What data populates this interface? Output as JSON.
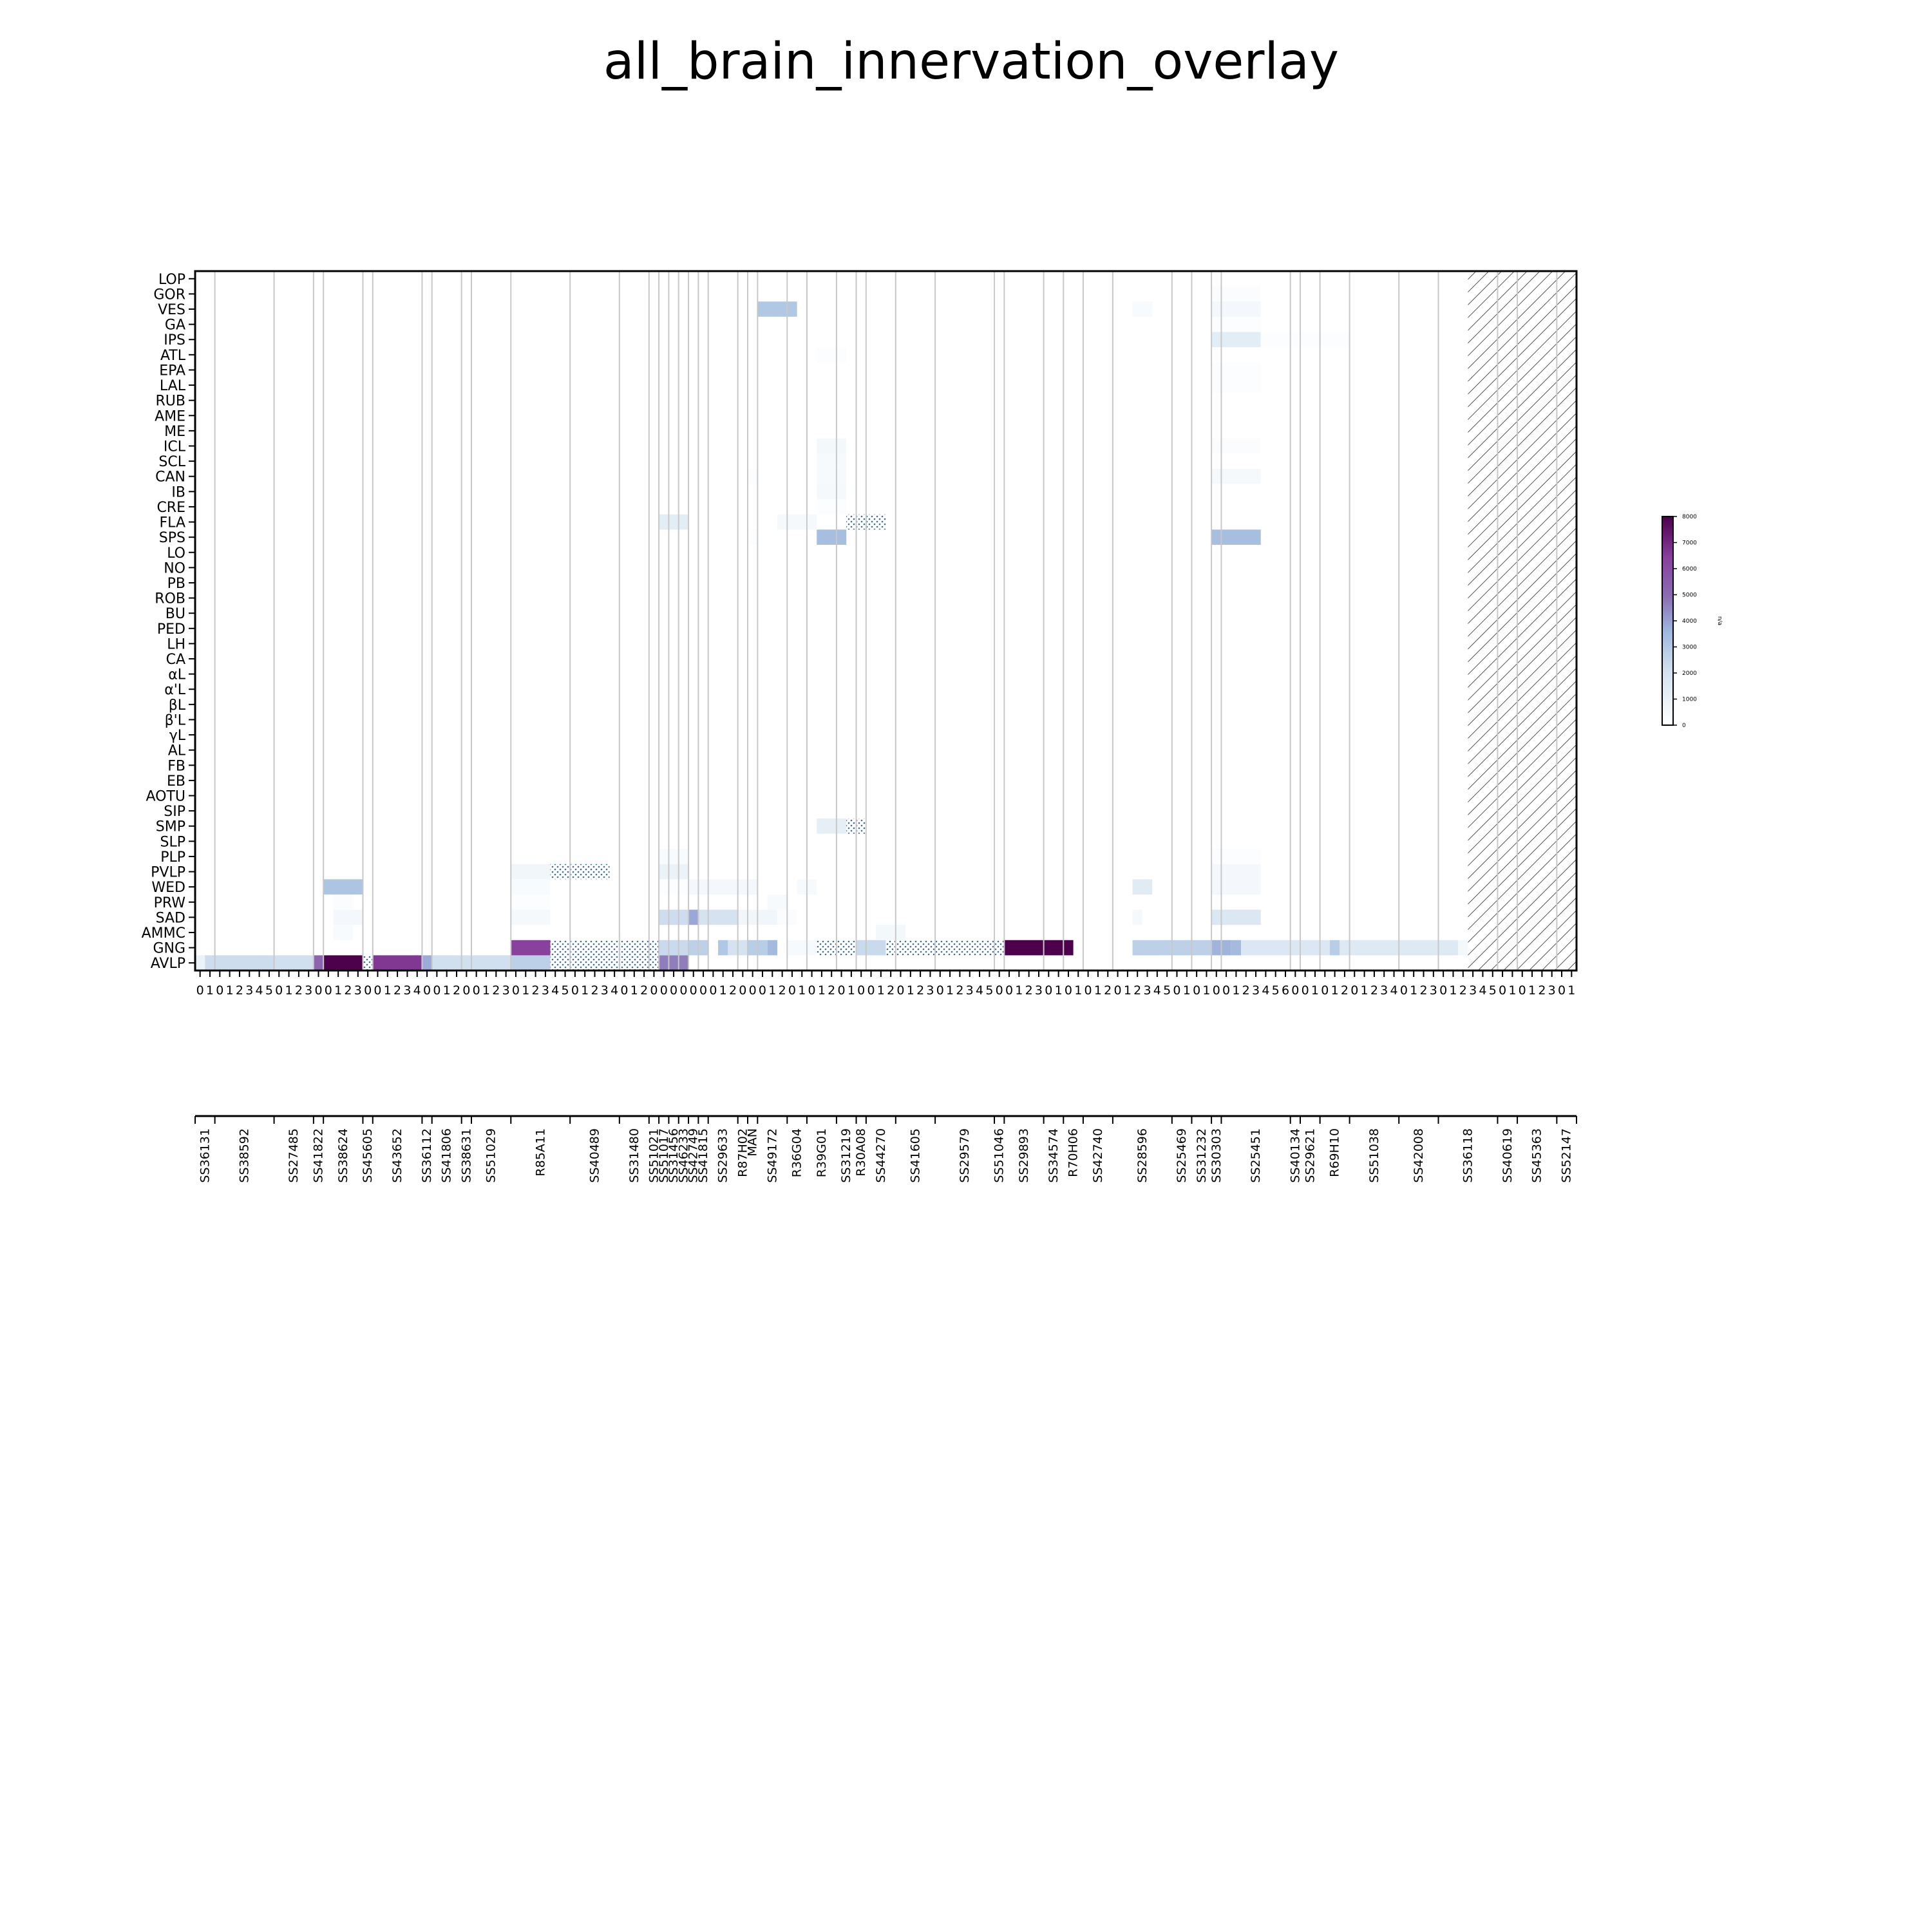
{
  "chart_data": {
    "type": "heatmap",
    "title": "all_brain_innervation_overlay",
    "regions": [
      "LOP",
      "GOR",
      "VES",
      "GA",
      "IPS",
      "ATL",
      "EPA",
      "LAL",
      "RUB",
      "AME",
      "ME",
      "ICL",
      "SCL",
      "CAN",
      "IB",
      "CRE",
      "FLA",
      "SPS",
      "LO",
      "NO",
      "PB",
      "ROB",
      "BU",
      "PED",
      "LH",
      "CA",
      "αL",
      "α'L",
      "βL",
      "β'L",
      "γL",
      "AL",
      "FB",
      "EB",
      "AOTU",
      "SIP",
      "SMP",
      "SLP",
      "PLP",
      "PVLP",
      "WED",
      "PRW",
      "SAD",
      "AMMC",
      "GNG",
      "AVLP"
    ],
    "lines": [
      {
        "name": "SS36131",
        "n": 2
      },
      {
        "name": "SS38592",
        "n": 6
      },
      {
        "name": "SS27485",
        "n": 4
      },
      {
        "name": "SS41822",
        "n": 1
      },
      {
        "name": "SS38624",
        "n": 4
      },
      {
        "name": "SS45605",
        "n": 1
      },
      {
        "name": "SS43652",
        "n": 5
      },
      {
        "name": "SS36112",
        "n": 1
      },
      {
        "name": "SS41806",
        "n": 3
      },
      {
        "name": "SS38631",
        "n": 1
      },
      {
        "name": "SS51029",
        "n": 4
      },
      {
        "name": "R85A11",
        "n": 6
      },
      {
        "name": "SS40489",
        "n": 5
      },
      {
        "name": "SS31480",
        "n": 3
      },
      {
        "name": "SS51021",
        "n": 1
      },
      {
        "name": "SS51017",
        "n": 1
      },
      {
        "name": "SS31456",
        "n": 1
      },
      {
        "name": "SS46233",
        "n": 1
      },
      {
        "name": "SS42749",
        "n": 1
      },
      {
        "name": "SS41815",
        "n": 1
      },
      {
        "name": "SS29633",
        "n": 3
      },
      {
        "name": "R87H02",
        "n": 1
      },
      {
        "name": "MAN",
        "n": 1
      },
      {
        "name": "SS49172",
        "n": 3
      },
      {
        "name": "R36G04",
        "n": 2
      },
      {
        "name": "R39G01",
        "n": 3
      },
      {
        "name": "SS31219",
        "n": 2
      },
      {
        "name": "R30A08",
        "n": 1
      },
      {
        "name": "SS44270",
        "n": 3
      },
      {
        "name": "SS41605",
        "n": 4
      },
      {
        "name": "SS29579",
        "n": 6
      },
      {
        "name": "SS51046",
        "n": 1
      },
      {
        "name": "SS29893",
        "n": 4
      },
      {
        "name": "SS34574",
        "n": 2
      },
      {
        "name": "R70H06",
        "n": 2
      },
      {
        "name": "SS42740",
        "n": 3
      },
      {
        "name": "SS28596",
        "n": 6
      },
      {
        "name": "SS25469",
        "n": 2
      },
      {
        "name": "SS31232",
        "n": 2
      },
      {
        "name": "SS30303",
        "n": 1
      },
      {
        "name": "SS25451",
        "n": 7
      },
      {
        "name": "SS40134",
        "n": 1
      },
      {
        "name": "SS29621",
        "n": 2
      },
      {
        "name": "R69H10",
        "n": 3
      },
      {
        "name": "SS51038",
        "n": 5
      },
      {
        "name": "SS42008",
        "n": 4
      },
      {
        "name": "SS36118",
        "n": 6
      },
      {
        "name": "SS40619",
        "n": 2
      },
      {
        "name": "SS45363",
        "n": 4
      },
      {
        "name": "SS52147",
        "n": 2
      }
    ],
    "no_data_from_column": 129,
    "colorbar": {
      "min": 0,
      "max": 8000,
      "ticks": [
        "0",
        "1000",
        "2000",
        "3000",
        "4000",
        "5000",
        "6000",
        "7000",
        "8000"
      ],
      "label": "n/a"
    },
    "cells": [
      {
        "region": "AVLP",
        "from": 0,
        "to": 1,
        "value": 1200
      },
      {
        "region": "AVLP",
        "from": 1,
        "to": 7,
        "value": 2200
      },
      {
        "region": "AVLP",
        "from": 8,
        "to": 11,
        "value": 2100
      },
      {
        "region": "AVLP",
        "from": 12,
        "to": 12,
        "value": 5000
      },
      {
        "region": "AVLP",
        "from": 13,
        "to": 16,
        "value": 8500
      },
      {
        "region": "AVLP",
        "from": 17,
        "to": 17,
        "value": 0,
        "pattern": true
      },
      {
        "region": "AVLP",
        "from": 18,
        "to": 22,
        "value": 6500
      },
      {
        "region": "AVLP",
        "from": 23,
        "to": 23,
        "value": 3700
      },
      {
        "region": "AVLP",
        "from": 24,
        "to": 31,
        "value": 2100
      },
      {
        "region": "AVLP",
        "from": 32,
        "to": 35,
        "value": 2600
      },
      {
        "region": "AVLP",
        "from": 36,
        "to": 46,
        "value": 0,
        "pattern": true
      },
      {
        "region": "AVLP",
        "from": 47,
        "to": 49,
        "value": 4500
      },
      {
        "region": "GNG",
        "from": 32,
        "to": 35,
        "value": 6200
      },
      {
        "region": "GNG",
        "from": 36,
        "to": 46,
        "value": 0,
        "pattern": true
      },
      {
        "region": "GNG",
        "from": 47,
        "to": 49,
        "value": 2300
      },
      {
        "region": "GNG",
        "from": 50,
        "to": 51,
        "value": 2600
      },
      {
        "region": "GNG",
        "from": 53,
        "to": 53,
        "value": 2900
      },
      {
        "region": "GNG",
        "from": 54,
        "to": 55,
        "value": 2000
      },
      {
        "region": "GNG",
        "from": 56,
        "to": 57,
        "value": 2700
      },
      {
        "region": "GNG",
        "from": 58,
        "to": 58,
        "value": 3300
      },
      {
        "region": "GNG",
        "from": 60,
        "to": 62,
        "value": 600
      },
      {
        "region": "GNG",
        "from": 63,
        "to": 66,
        "value": 0,
        "pattern": true
      },
      {
        "region": "GNG",
        "from": 67,
        "to": 69,
        "value": 2300
      },
      {
        "region": "GNG",
        "from": 70,
        "to": 81,
        "value": 0,
        "pattern": true
      },
      {
        "region": "GNG",
        "from": 82,
        "to": 88,
        "value": 8500
      },
      {
        "region": "GNG",
        "from": 95,
        "to": 102,
        "value": 2600
      },
      {
        "region": "GNG",
        "from": 103,
        "to": 104,
        "value": 3500
      },
      {
        "region": "GNG",
        "from": 105,
        "to": 105,
        "value": 3300
      },
      {
        "region": "GNG",
        "from": 106,
        "to": 114,
        "value": 1800
      },
      {
        "region": "GNG",
        "from": 115,
        "to": 115,
        "value": 2700
      },
      {
        "region": "GNG",
        "from": 116,
        "to": 127,
        "value": 1700
      },
      {
        "region": "GNG",
        "from": 128,
        "to": 128,
        "value": 900
      },
      {
        "region": "AMMC",
        "from": 14,
        "to": 15,
        "value": 500
      },
      {
        "region": "AMMC",
        "from": 69,
        "to": 71,
        "value": 900
      },
      {
        "region": "SAD",
        "from": 14,
        "to": 16,
        "value": 800
      },
      {
        "region": "SAD",
        "from": 32,
        "to": 35,
        "value": 700
      },
      {
        "region": "SAD",
        "from": 47,
        "to": 49,
        "value": 2200
      },
      {
        "region": "SAD",
        "from": 50,
        "to": 50,
        "value": 3800
      },
      {
        "region": "SAD",
        "from": 51,
        "to": 54,
        "value": 2000
      },
      {
        "region": "SAD",
        "from": 55,
        "to": 58,
        "value": 1000
      },
      {
        "region": "SAD",
        "from": 59,
        "to": 60,
        "value": 400
      },
      {
        "region": "SAD",
        "from": 95,
        "to": 95,
        "value": 700
      },
      {
        "region": "SAD",
        "from": 103,
        "to": 107,
        "value": 1800
      },
      {
        "region": "PRW",
        "from": 14,
        "to": 15,
        "value": 400
      },
      {
        "region": "PRW",
        "from": 32,
        "to": 35,
        "value": 300
      },
      {
        "region": "PRW",
        "from": 58,
        "to": 59,
        "value": 600
      },
      {
        "region": "WED",
        "from": 13,
        "to": 16,
        "value": 3000
      },
      {
        "region": "WED",
        "from": 32,
        "to": 35,
        "value": 500
      },
      {
        "region": "WED",
        "from": 47,
        "to": 49,
        "value": 200
      },
      {
        "region": "WED",
        "from": 50,
        "to": 56,
        "value": 800
      },
      {
        "region": "WED",
        "from": 61,
        "to": 62,
        "value": 600
      },
      {
        "region": "WED",
        "from": 95,
        "to": 96,
        "value": 1600
      },
      {
        "region": "WED",
        "from": 103,
        "to": 107,
        "value": 800
      },
      {
        "region": "PVLP",
        "from": 32,
        "to": 35,
        "value": 1000
      },
      {
        "region": "PVLP",
        "from": 36,
        "to": 41,
        "value": 0,
        "pattern": true
      },
      {
        "region": "PVLP",
        "from": 47,
        "to": 49,
        "value": 1200
      },
      {
        "region": "PVLP",
        "from": 103,
        "to": 107,
        "value": 800
      },
      {
        "region": "PLP",
        "from": 47,
        "to": 49,
        "value": 500
      },
      {
        "region": "PLP",
        "from": 103,
        "to": 107,
        "value": 300
      },
      {
        "region": "SMP",
        "from": 63,
        "to": 65,
        "value": 1400
      },
      {
        "region": "SMP",
        "from": 66,
        "to": 67,
        "value": 0,
        "pattern": true
      },
      {
        "region": "SPS",
        "from": 63,
        "to": 65,
        "value": 3200
      },
      {
        "region": "SPS",
        "from": 103,
        "to": 107,
        "value": 3200
      },
      {
        "region": "SPS",
        "from": 56,
        "to": 56,
        "value": 300
      },
      {
        "region": "FLA",
        "from": 47,
        "to": 49,
        "value": 1500
      },
      {
        "region": "FLA",
        "from": 59,
        "to": 62,
        "value": 700
      },
      {
        "region": "FLA",
        "from": 66,
        "to": 69,
        "value": 0,
        "pattern": true
      },
      {
        "region": "CRE",
        "from": 63,
        "to": 65,
        "value": 200
      },
      {
        "region": "IB",
        "from": 63,
        "to": 65,
        "value": 700
      },
      {
        "region": "CAN",
        "from": 56,
        "to": 56,
        "value": 400
      },
      {
        "region": "CAN",
        "from": 63,
        "to": 65,
        "value": 600
      },
      {
        "region": "CAN",
        "from": 103,
        "to": 107,
        "value": 700
      },
      {
        "region": "SCL",
        "from": 63,
        "to": 65,
        "value": 600
      },
      {
        "region": "ICL",
        "from": 63,
        "to": 65,
        "value": 900
      },
      {
        "region": "ICL",
        "from": 103,
        "to": 107,
        "value": 400
      },
      {
        "region": "LAL",
        "from": 103,
        "to": 107,
        "value": 300
      },
      {
        "region": "EPA",
        "from": 103,
        "to": 107,
        "value": 300
      },
      {
        "region": "ATL",
        "from": 63,
        "to": 65,
        "value": 300
      },
      {
        "region": "IPS",
        "from": 103,
        "to": 107,
        "value": 1500
      },
      {
        "region": "IPS",
        "from": 108,
        "to": 116,
        "value": 300
      },
      {
        "region": "GA",
        "from": 103,
        "to": 107,
        "value": 300
      },
      {
        "region": "VES",
        "from": 57,
        "to": 60,
        "value": 2900
      },
      {
        "region": "VES",
        "from": 95,
        "to": 96,
        "value": 500
      },
      {
        "region": "VES",
        "from": 103,
        "to": 107,
        "value": 800
      },
      {
        "region": "GOR",
        "from": 103,
        "to": 107,
        "value": 400
      }
    ]
  }
}
